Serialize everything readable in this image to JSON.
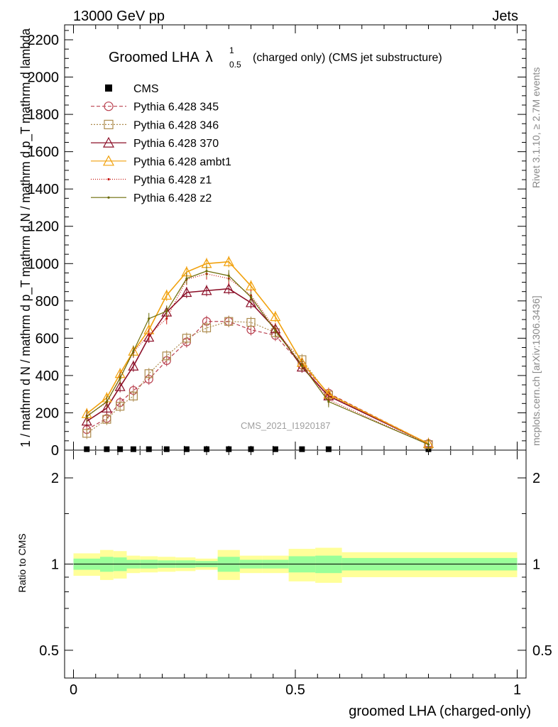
{
  "header": {
    "left": "13000 GeV pp",
    "right": "Jets"
  },
  "watermark": "CMS_2021_I1920187",
  "side_labels": {
    "rivet": "Rivet 3.1.10, ≥ 2.7M events",
    "mcplots": "mcplots.cern.ch [arXiv:1306.3436]"
  },
  "chart_data": {
    "type": "line",
    "title_prefix": "Groomed LHA",
    "title_symbol": "λ",
    "title_sup": "1",
    "title_sub": "0.5",
    "title_suffix": "(charged only) (CMS jet substructure)",
    "ylabel": "1 / mathrm d N / mathrm d p_T mathrm d N / mathrm d p_T mathrm d lambda",
    "xlabel": "groomed LHA (charged-only)",
    "ratio_ylabel": "Ratio to CMS",
    "xlim": [
      -0.02,
      1.02
    ],
    "ylim": [
      0,
      2280
    ],
    "ratio_ylim": [
      0.4,
      2.5
    ],
    "x_ticks": [
      0,
      0.5,
      1
    ],
    "x_tick_labels": [
      "0",
      "0.5",
      "1"
    ],
    "y_ticks": [
      0,
      200,
      400,
      600,
      800,
      1000,
      1200,
      1400,
      1600,
      1800,
      2000,
      2200
    ],
    "y_tick_labels": [
      "0",
      "200",
      "400",
      "600",
      "800",
      "1000",
      "1200",
      "1400",
      "1600",
      "1800",
      "2000",
      "2200"
    ],
    "ratio_ticks": [
      0.5,
      1,
      2
    ],
    "ratio_tick_labels": [
      "0.5",
      "1",
      "2"
    ],
    "x": [
      0.03,
      0.075,
      0.105,
      0.135,
      0.17,
      0.21,
      0.255,
      0.3,
      0.35,
      0.4,
      0.455,
      0.515,
      0.575,
      0.8
    ],
    "series": [
      {
        "name": "CMS",
        "color": "#000000",
        "marker": "square-filled",
        "dash": "none",
        "values": [
          5,
          5,
          5,
          5,
          5,
          5,
          5,
          5,
          5,
          5,
          5,
          5,
          5,
          5
        ]
      },
      {
        "name": "Pythia 6.428 345",
        "color": "#b9404f",
        "marker": "circle-open",
        "dash": "5,3",
        "values": [
          110,
          170,
          255,
          320,
          380,
          480,
          580,
          690,
          690,
          645,
          615,
          455,
          305,
          35
        ]
      },
      {
        "name": "Pythia 6.428 346",
        "color": "#ad8b4d",
        "marker": "square-open",
        "dash": "2,2",
        "values": [
          90,
          165,
          235,
          290,
          410,
          505,
          600,
          655,
          690,
          685,
          630,
          485,
          295,
          30
        ]
      },
      {
        "name": "Pythia 6.428 370",
        "color": "#8b0e27",
        "marker": "triangle-open",
        "dash": "none",
        "values": [
          155,
          225,
          340,
          450,
          605,
          740,
          845,
          855,
          865,
          790,
          650,
          445,
          290,
          35
        ]
      },
      {
        "name": "Pythia 6.428 ambt1",
        "color": "#f1a10d",
        "marker": "triangle-open",
        "dash": "none",
        "values": [
          195,
          280,
          410,
          530,
          645,
          830,
          955,
          1000,
          1010,
          880,
          715,
          470,
          300,
          35
        ]
      },
      {
        "name": "Pythia 6.428 z1",
        "color": "#c8140f",
        "marker": "dot",
        "dash": "1,2",
        "values": [
          185,
          255,
          390,
          525,
          620,
          705,
          915,
          945,
          920,
          830,
          650,
          460,
          270,
          30
        ]
      },
      {
        "name": "Pythia 6.428 z2",
        "color": "#6b6b07",
        "marker": "dot",
        "dash": "none",
        "values": [
          180,
          260,
          385,
          530,
          705,
          745,
          920,
          960,
          935,
          820,
          640,
          455,
          260,
          30
        ]
      }
    ],
    "ratio_bands": [
      {
        "x0": 0.0,
        "x1": 0.06,
        "yellow": [
          0.91,
          1.09
        ],
        "green": [
          0.955,
          1.045
        ]
      },
      {
        "x0": 0.06,
        "x1": 0.09,
        "yellow": [
          0.88,
          1.12
        ],
        "green": [
          0.94,
          1.06
        ]
      },
      {
        "x0": 0.09,
        "x1": 0.12,
        "yellow": [
          0.89,
          1.11
        ],
        "green": [
          0.945,
          1.055
        ]
      },
      {
        "x0": 0.12,
        "x1": 0.15,
        "yellow": [
          0.93,
          1.07
        ],
        "green": [
          0.965,
          1.035
        ]
      },
      {
        "x0": 0.15,
        "x1": 0.19,
        "yellow": [
          0.935,
          1.065
        ],
        "green": [
          0.965,
          1.035
        ]
      },
      {
        "x0": 0.19,
        "x1": 0.23,
        "yellow": [
          0.94,
          1.06
        ],
        "green": [
          0.97,
          1.03
        ]
      },
      {
        "x0": 0.23,
        "x1": 0.275,
        "yellow": [
          0.945,
          1.055
        ],
        "green": [
          0.97,
          1.03
        ]
      },
      {
        "x0": 0.275,
        "x1": 0.325,
        "yellow": [
          0.955,
          1.045
        ],
        "green": [
          0.975,
          1.025
        ]
      },
      {
        "x0": 0.325,
        "x1": 0.375,
        "yellow": [
          0.88,
          1.12
        ],
        "green": [
          0.94,
          1.06
        ]
      },
      {
        "x0": 0.375,
        "x1": 0.425,
        "yellow": [
          0.93,
          1.07
        ],
        "green": [
          0.965,
          1.035
        ]
      },
      {
        "x0": 0.425,
        "x1": 0.485,
        "yellow": [
          0.93,
          1.07
        ],
        "green": [
          0.965,
          1.035
        ]
      },
      {
        "x0": 0.485,
        "x1": 0.545,
        "yellow": [
          0.87,
          1.13
        ],
        "green": [
          0.935,
          1.065
        ]
      },
      {
        "x0": 0.545,
        "x1": 0.605,
        "yellow": [
          0.86,
          1.14
        ],
        "green": [
          0.93,
          1.07
        ]
      },
      {
        "x0": 0.605,
        "x1": 1.0,
        "yellow": [
          0.9,
          1.1
        ],
        "green": [
          0.95,
          1.05
        ]
      }
    ]
  }
}
